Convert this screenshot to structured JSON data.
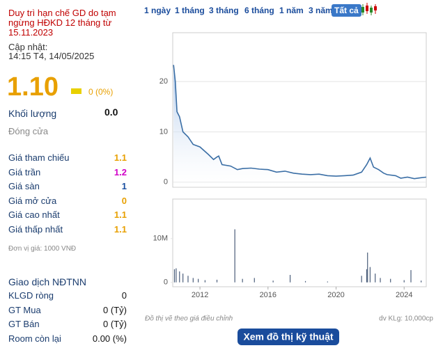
{
  "panel": {
    "notice": "Duy trì hạn chế GD do tạm ngừng HĐKD 12 tháng từ 15.11.2023",
    "update_label": "Cập nhật:",
    "update_time": "14:15 T4, 14/05/2025",
    "price": "1.10",
    "change": "0 (0%)",
    "volume_label": "Khối lượng",
    "volume": "0.0",
    "close_label": "Đóng cửa",
    "rows": [
      {
        "label": "Giá tham chiếu",
        "value": "1.1",
        "color": "#e8a000"
      },
      {
        "label": "Giá trần",
        "value": "1.2",
        "color": "#d100c8"
      },
      {
        "label": "Giá sàn",
        "value": "1",
        "color": "#1a4fa0"
      },
      {
        "label": "Giá mở cửa",
        "value": "0",
        "color": "#e8a000"
      },
      {
        "label": "Giá cao nhất",
        "value": "1.1",
        "color": "#e8a000"
      },
      {
        "label": "Giá thấp nhất",
        "value": "1.1",
        "color": "#e8a000"
      }
    ],
    "unit_note": "Đơn vị giá: 1000 VNĐ",
    "foreign_title": "Giao dịch NĐTNN",
    "foreign_rows": [
      {
        "label": "KLGD ròng",
        "value": "0"
      },
      {
        "label": "GT Mua",
        "value": "0 (Tỷ)"
      },
      {
        "label": "GT Bán",
        "value": "0 (Tỷ)"
      },
      {
        "label": "Room còn lại",
        "value": "0.00 (%)"
      }
    ]
  },
  "tabs": {
    "items": [
      "1 ngày",
      "1 tháng",
      "3 tháng",
      "6 tháng",
      "1 năm",
      "3 năm",
      "Tất cả"
    ],
    "active": 6
  },
  "chart_data": [
    {
      "type": "line",
      "color": "#3a6ea5",
      "grid": true,
      "x": [
        2010.45,
        2010.55,
        2010.65,
        2010.8,
        2011.0,
        2011.3,
        2011.6,
        2012.0,
        2012.5,
        2012.8,
        2013.0,
        2013.1,
        2013.3,
        2013.8,
        2014.2,
        2014.5,
        2015.0,
        2015.5,
        2016.0,
        2016.5,
        2017.0,
        2017.5,
        2018.0,
        2018.5,
        2019.0,
        2019.5,
        2020.0,
        2020.5,
        2021.0,
        2021.5,
        2021.8,
        2022.0,
        2022.2,
        2022.5,
        2022.8,
        2023.0,
        2023.5,
        2023.8,
        2024.2,
        2024.6,
        2025.0,
        2025.3
      ],
      "values": [
        23.3,
        20,
        14,
        13,
        10,
        9,
        7.5,
        7,
        5.5,
        4.5,
        5,
        5.2,
        3.5,
        3.2,
        2.5,
        2.7,
        2.8,
        2.6,
        2.5,
        2.0,
        2.2,
        1.8,
        1.6,
        1.5,
        1.6,
        1.3,
        1.2,
        1.3,
        1.4,
        2.0,
        3.5,
        4.8,
        3.0,
        2.5,
        1.8,
        1.5,
        1.3,
        0.8,
        1.0,
        0.7,
        0.9,
        1.0
      ],
      "xlim": [
        2010.4,
        2025.3
      ],
      "ylim": [
        -1,
        29.7
      ],
      "yticks": [
        0,
        10,
        20
      ]
    },
    {
      "type": "bar",
      "color": "#4a5d7a",
      "x": [
        2010.5,
        2010.6,
        2010.8,
        2011.0,
        2011.3,
        2011.6,
        2011.9,
        2012.3,
        2013.0,
        2014.05,
        2014.5,
        2015.2,
        2016.3,
        2017.3,
        2018.2,
        2019.5,
        2021.5,
        2021.8,
        2021.85,
        2022.0,
        2022.3,
        2022.6,
        2023.2,
        2024.0,
        2024.4,
        2025.0
      ],
      "values": [
        3000000,
        3200000,
        2500000,
        2000000,
        1500000,
        1000000,
        800000,
        500000,
        600000,
        12100000,
        800000,
        1000000,
        400000,
        1700000,
        300000,
        200000,
        1500000,
        3000000,
        6800000,
        3500000,
        2000000,
        1000000,
        800000,
        500000,
        2800000,
        400000
      ],
      "xlim": [
        2010.4,
        2025.3
      ],
      "ylim": [
        -1000000,
        19000000
      ],
      "yticks": [
        0,
        {
          "value": 10000000,
          "label": "10M"
        }
      ],
      "xticks": [
        2012,
        2016,
        2020,
        2024
      ],
      "note": "Đồ thị vẽ theo giá điều chỉnh",
      "unit": "dv KLg: 10,000cp"
    }
  ],
  "button": "Xem đồ thị kỹ thuật"
}
